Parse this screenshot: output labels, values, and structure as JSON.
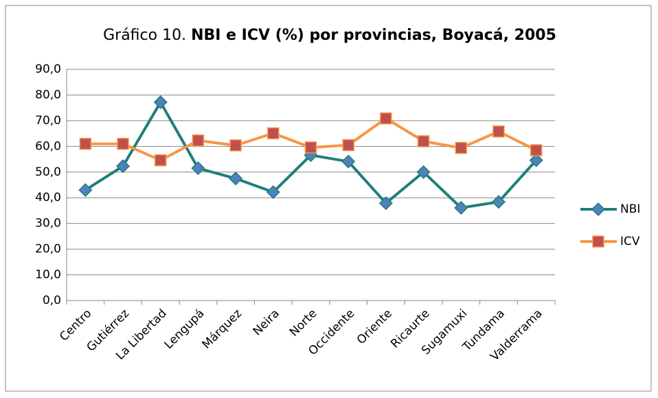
{
  "chart_data": {
    "type": "line",
    "title": [
      "Gráfico 10.",
      "NBI e ICV (%) por provincias, Boyacá, 2005"
    ],
    "categories": [
      "Centro",
      "Gutiérrez",
      "La Libertad",
      "Lengupá",
      "Márquez",
      "Neira",
      "Norte",
      "Occidente",
      "Oriente",
      "Ricaurte",
      "Sugamuxi",
      "Tundama",
      "Valderrama"
    ],
    "series": [
      {
        "name": "NBI",
        "color": "#1f7f7a",
        "marker_color": "#4f81bd",
        "marker": "diamond",
        "values": [
          43.0,
          52.3,
          77.2,
          51.5,
          47.5,
          42.2,
          56.6,
          54.1,
          37.9,
          50.0,
          36.1,
          38.4,
          54.6
        ]
      },
      {
        "name": "ICV",
        "color": "#f79646",
        "marker_color": "#c0504d",
        "marker": "square",
        "values": [
          61.0,
          61.0,
          54.6,
          62.3,
          60.4,
          65.1,
          59.6,
          60.5,
          70.9,
          62.0,
          59.4,
          65.8,
          58.5
        ]
      }
    ],
    "ylim": [
      0,
      90
    ],
    "yticks": [
      {
        "value": 0,
        "label": "0,0"
      },
      {
        "value": 10,
        "label": "10,0"
      },
      {
        "value": 20,
        "label": "20,0"
      },
      {
        "value": 30,
        "label": "30,0"
      },
      {
        "value": 40,
        "label": "40,0"
      },
      {
        "value": 50,
        "label": "50,0"
      },
      {
        "value": 60,
        "label": "60,0"
      },
      {
        "value": 70,
        "label": "70,0"
      },
      {
        "value": 80,
        "label": "80,0"
      },
      {
        "value": 90,
        "label": "90,0"
      }
    ],
    "grid": true,
    "legend": "right"
  }
}
